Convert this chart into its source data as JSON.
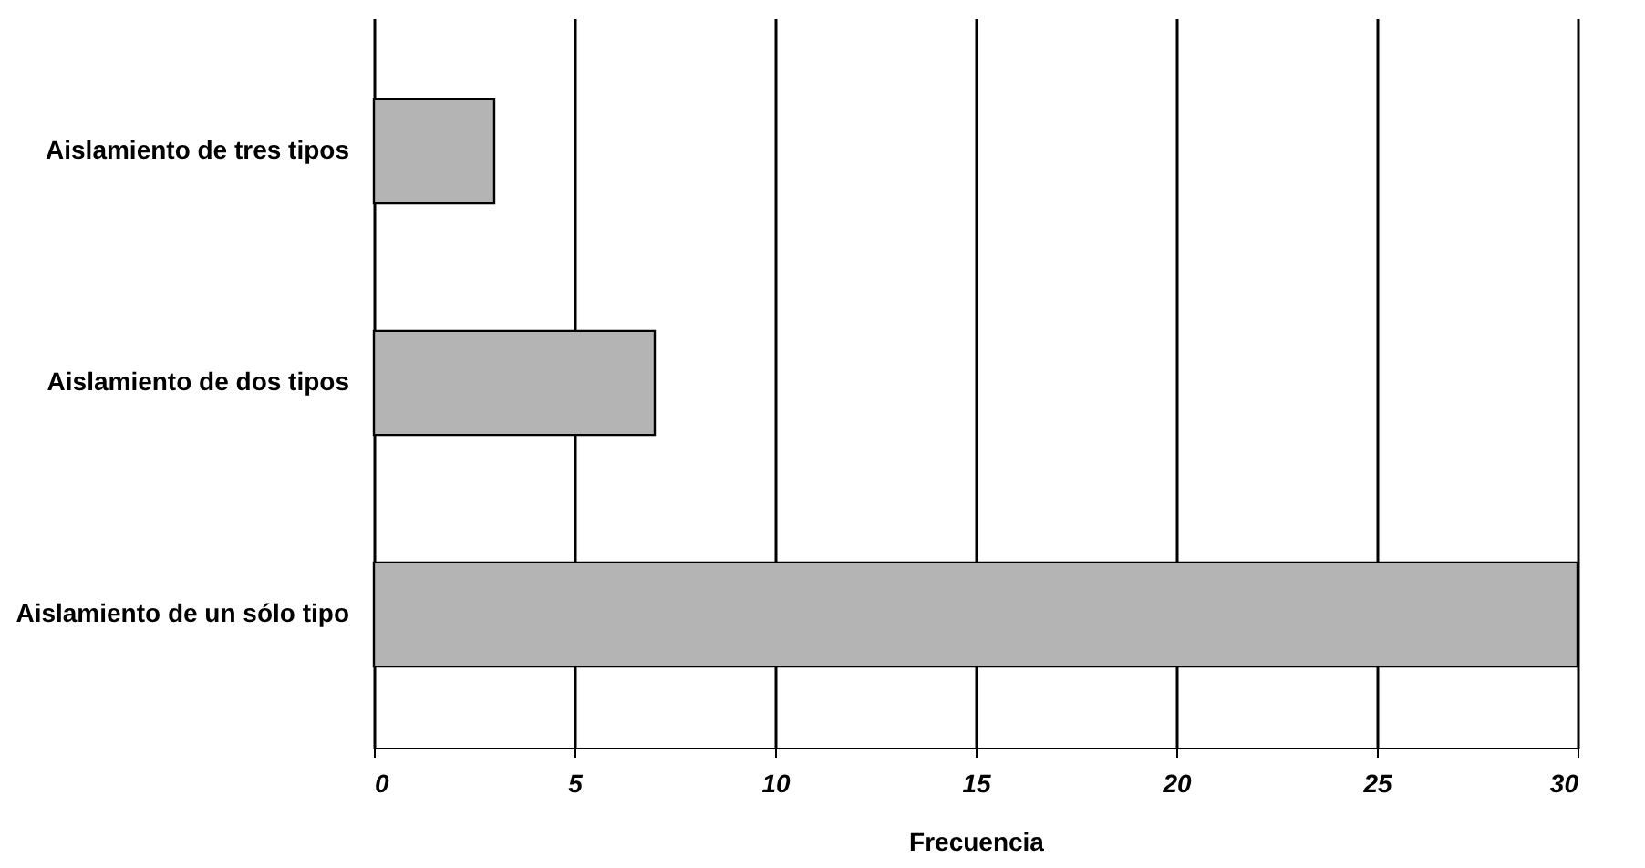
{
  "chart_data": {
    "type": "bar",
    "orientation": "horizontal",
    "xlabel": "Frecuencia",
    "categories": [
      "Aislamiento de tres tipos",
      "Aislamiento de dos tipos",
      "Aislamiento de un sólo tipo"
    ],
    "values": [
      3,
      7,
      30
    ],
    "color": "#b4b4b4",
    "xlim": [
      0,
      30
    ],
    "xticks": [
      0,
      5,
      10,
      15,
      20,
      25,
      30
    ],
    "grid": "x"
  }
}
